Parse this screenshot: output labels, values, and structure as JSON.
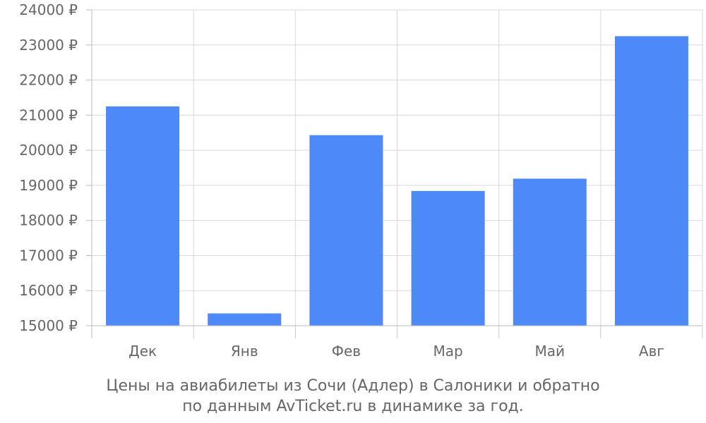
{
  "chart_data": {
    "type": "bar",
    "title": "Цены на авиабилеты из Сочи (Адлер) в Салоники и обратно",
    "subtitle": "по данным AvTicket.ru в динамике за год.",
    "categories": [
      "Дек",
      "Янв",
      "Фев",
      "Мар",
      "Май",
      "Авг"
    ],
    "values": [
      21250,
      15350,
      20430,
      18840,
      19190,
      23250
    ],
    "ylim": [
      15000,
      24000
    ],
    "yticks": [
      15000,
      16000,
      17000,
      18000,
      19000,
      20000,
      21000,
      22000,
      23000,
      24000
    ],
    "y_unit_suffix": " ₽",
    "grid": true,
    "bar_color": "#4d89f9",
    "grid_color": "#d9d9d9",
    "text_color": "#666666"
  }
}
